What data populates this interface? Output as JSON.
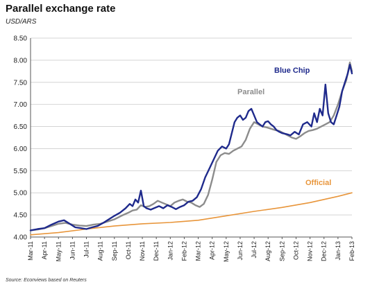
{
  "chart_data": {
    "type": "line",
    "title": "Parallel exchange rate",
    "subtitle": "USD/ARS",
    "source": "Source: Econviews based on Reuters",
    "xlabel": "",
    "ylabel": "",
    "ylim": [
      4.0,
      8.5
    ],
    "yticks": [
      "4.00",
      "4.50",
      "5.00",
      "5.50",
      "6.00",
      "6.50",
      "7.00",
      "7.50",
      "8.00",
      "8.50"
    ],
    "xticks": [
      "Mar-11",
      "Apr-11",
      "May-11",
      "Jun-11",
      "Jul-11",
      "Aug-11",
      "Sep-11",
      "Oct-11",
      "Nov-11",
      "Dec-11",
      "Jan-12",
      "Feb-12",
      "Mar-12",
      "Apr-12",
      "May-12",
      "Jun-12",
      "Jul-12",
      "Aug-12",
      "Sep-12",
      "Oct-12",
      "Nov-12",
      "Dec-12",
      "Jan-13",
      "Feb-13"
    ],
    "grid": "horizontal",
    "legend": "inline labels",
    "series": [
      {
        "name": "Blue Chip",
        "color": "#1f2a8c",
        "x": [
          0,
          0.5,
          1,
          1.5,
          2,
          2.4,
          2.8,
          3.2,
          3.6,
          4,
          4.4,
          4.8,
          5.2,
          5.6,
          6,
          6.4,
          6.8,
          7.1,
          7.3,
          7.5,
          7.7,
          7.9,
          8.1,
          8.3,
          8.6,
          8.9,
          9.2,
          9.5,
          9.8,
          10.1,
          10.4,
          10.7,
          11,
          11.3,
          11.6,
          11.9,
          12.2,
          12.5,
          12.8,
          13.1,
          13.4,
          13.7,
          14,
          14.2,
          14.4,
          14.6,
          14.8,
          15,
          15.2,
          15.4,
          15.6,
          15.8,
          16,
          16.2,
          16.4,
          16.6,
          16.8,
          17,
          17.2,
          17.4,
          17.6,
          17.8,
          18,
          18.3,
          18.6,
          18.9,
          19.2,
          19.5,
          19.8,
          20.1,
          20.3,
          20.5,
          20.7,
          20.9,
          21.1,
          21.3,
          21.5,
          21.7,
          21.9,
          22.1,
          22.3,
          22.5,
          22.7,
          22.85,
          23
        ],
        "values": [
          4.15,
          4.18,
          4.2,
          4.28,
          4.35,
          4.38,
          4.3,
          4.22,
          4.2,
          4.18,
          4.22,
          4.25,
          4.32,
          4.4,
          4.48,
          4.55,
          4.65,
          4.75,
          4.7,
          4.85,
          4.78,
          5.05,
          4.7,
          4.65,
          4.62,
          4.66,
          4.7,
          4.65,
          4.72,
          4.68,
          4.63,
          4.68,
          4.72,
          4.8,
          4.82,
          4.9,
          5.08,
          5.35,
          5.55,
          5.75,
          5.95,
          6.05,
          6.0,
          6.1,
          6.35,
          6.6,
          6.7,
          6.75,
          6.65,
          6.7,
          6.85,
          6.9,
          6.75,
          6.6,
          6.55,
          6.5,
          6.6,
          6.62,
          6.55,
          6.5,
          6.42,
          6.38,
          6.35,
          6.33,
          6.3,
          6.38,
          6.32,
          6.55,
          6.6,
          6.5,
          6.8,
          6.6,
          6.9,
          6.75,
          7.45,
          6.8,
          6.6,
          6.55,
          6.75,
          6.95,
          7.3,
          7.5,
          7.7,
          7.9,
          7.7
        ]
      },
      {
        "name": "Parallel",
        "color": "#8c8c8c",
        "x": [
          0,
          0.5,
          1,
          1.5,
          2,
          2.5,
          3,
          3.5,
          4,
          4.5,
          5,
          5.5,
          6,
          6.5,
          7,
          7.3,
          7.6,
          7.9,
          8.2,
          8.5,
          8.8,
          9.1,
          9.4,
          9.7,
          10,
          10.3,
          10.6,
          10.9,
          11.2,
          11.5,
          11.8,
          12.1,
          12.4,
          12.7,
          13,
          13.3,
          13.6,
          13.9,
          14.2,
          14.5,
          14.8,
          15.1,
          15.4,
          15.7,
          16,
          16.3,
          16.6,
          16.9,
          17.2,
          17.5,
          17.8,
          18.1,
          18.4,
          18.7,
          19,
          19.3,
          19.6,
          19.9,
          20.2,
          20.5,
          20.8,
          21.1,
          21.4,
          21.7,
          22,
          22.3,
          22.6,
          22.85,
          23
        ],
        "values": [
          4.15,
          4.17,
          4.2,
          4.25,
          4.3,
          4.32,
          4.28,
          4.26,
          4.25,
          4.28,
          4.3,
          4.35,
          4.4,
          4.48,
          4.55,
          4.6,
          4.62,
          4.72,
          4.68,
          4.7,
          4.75,
          4.82,
          4.78,
          4.74,
          4.7,
          4.78,
          4.82,
          4.85,
          4.8,
          4.78,
          4.72,
          4.68,
          4.75,
          4.95,
          5.3,
          5.7,
          5.85,
          5.9,
          5.88,
          5.95,
          6.0,
          6.05,
          6.2,
          6.45,
          6.6,
          6.55,
          6.5,
          6.48,
          6.45,
          6.42,
          6.4,
          6.35,
          6.3,
          6.25,
          6.22,
          6.28,
          6.35,
          6.4,
          6.42,
          6.45,
          6.5,
          6.55,
          6.6,
          6.75,
          7.0,
          7.3,
          7.55,
          7.95,
          7.75
        ]
      },
      {
        "name": "Official",
        "color": "#e8953a",
        "x": [
          0,
          2,
          4,
          6,
          8,
          10,
          12,
          14,
          16,
          18,
          20,
          22,
          23
        ],
        "values": [
          4.05,
          4.1,
          4.18,
          4.25,
          4.3,
          4.33,
          4.38,
          4.48,
          4.58,
          4.67,
          4.78,
          4.92,
          5.0
        ]
      }
    ]
  }
}
